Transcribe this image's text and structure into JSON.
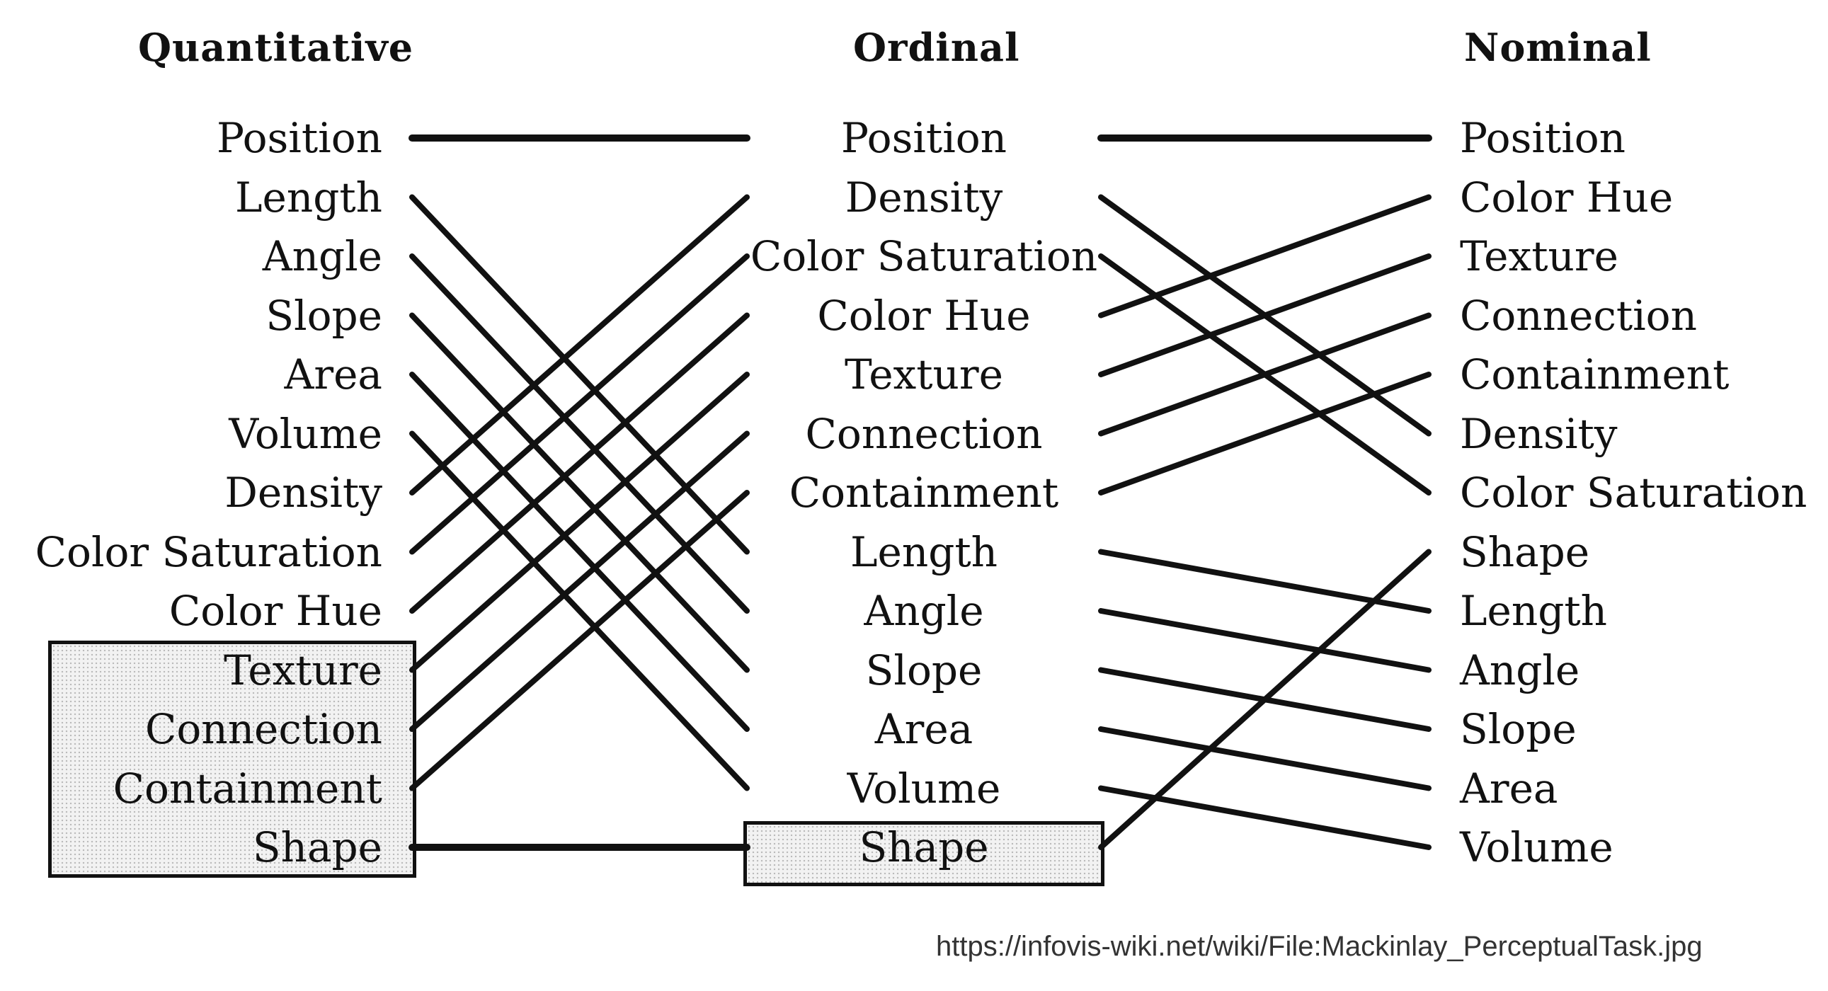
{
  "columns": {
    "quantitative": {
      "title": "Quantitative",
      "items": [
        "Position",
        "Length",
        "Angle",
        "Slope",
        "Area",
        "Volume",
        "Density",
        "Color Saturation",
        "Color Hue",
        "Texture",
        "Connection",
        "Containment",
        "Shape"
      ]
    },
    "ordinal": {
      "title": "Ordinal",
      "items": [
        "Position",
        "Density",
        "Color Saturation",
        "Color Hue",
        "Texture",
        "Connection",
        "Containment",
        "Length",
        "Angle",
        "Slope",
        "Area",
        "Volume",
        "Shape"
      ]
    },
    "nominal": {
      "title": "Nominal",
      "items": [
        "Position",
        "Color Hue",
        "Texture",
        "Connection",
        "Containment",
        "Density",
        "Color Saturation",
        "Shape",
        "Length",
        "Angle",
        "Slope",
        "Area",
        "Volume"
      ]
    }
  },
  "highlighted": {
    "quantitative": [
      "Texture",
      "Connection",
      "Containment",
      "Shape"
    ],
    "ordinal": [
      "Shape"
    ]
  },
  "source_url": "https://infovis-wiki.net/wiki/File:Mackinlay_PerceptualTask.jpg"
}
